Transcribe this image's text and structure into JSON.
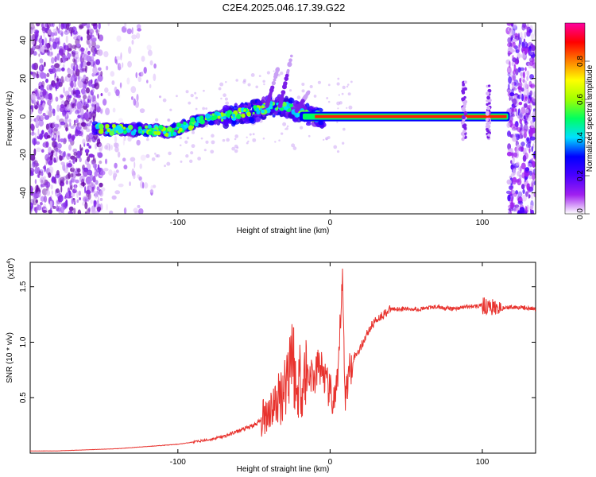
{
  "title": "C2E4.2025.046.17.39.G22",
  "colors": {
    "snr_line": "#e8332e",
    "axes": "#000000",
    "cmap": [
      "#ffffff",
      "#a020f0",
      "#4b00ff",
      "#0000ff",
      "#00e0ff",
      "#00ff60",
      "#a0ff00",
      "#ffff00",
      "#ff8000",
      "#ff0000",
      "#ff00a0"
    ]
  },
  "chart_data": [
    {
      "type": "heatmap",
      "xlabel": "Height of straight line (km)",
      "ylabel": "Frequency (Hz)",
      "xlim": [
        -197,
        135
      ],
      "ylim": [
        -51,
        49
      ],
      "x_ticks": [
        -100,
        0,
        100
      ],
      "y_ticks": [
        -40,
        -20,
        0,
        20,
        40
      ],
      "colorbar": {
        "label": "Normalized spectral amplitude",
        "range": [
          0,
          1
        ],
        "ticks": [
          0.0,
          0.2,
          0.4,
          0.6,
          0.8
        ]
      },
      "ridge": [
        {
          "x": -155,
          "y": -6
        },
        {
          "x": -140,
          "y": -7
        },
        {
          "x": -120,
          "y": -7
        },
        {
          "x": -105,
          "y": -8
        },
        {
          "x": -95,
          "y": -5
        },
        {
          "x": -85,
          "y": -2
        },
        {
          "x": -70,
          "y": 0
        },
        {
          "x": -55,
          "y": 2
        },
        {
          "x": -40,
          "y": 5
        },
        {
          "x": -30,
          "y": 6
        },
        {
          "x": -20,
          "y": 2
        },
        {
          "x": -10,
          "y": 0
        },
        {
          "x": 0,
          "y": 0
        },
        {
          "x": 50,
          "y": 0
        },
        {
          "x": 100,
          "y": 0
        },
        {
          "x": 118,
          "y": 0
        }
      ]
    },
    {
      "type": "line",
      "xlabel": "Height of straight line (km)",
      "ylabel": "SNR (10 * v/v)",
      "y_multiplier": "(x10",
      "y_multiplier_exp": "4",
      "xlim": [
        -197,
        135
      ],
      "ylim": [
        0,
        1.72
      ],
      "x_ticks": [
        -100,
        0,
        100
      ],
      "y_ticks": [
        0.5,
        1.0,
        1.5
      ],
      "series": [
        {
          "x": [
            -197,
            -180,
            -160,
            -140,
            -120,
            -100,
            -90,
            -80,
            -70,
            -60,
            -50,
            -45,
            -40,
            -35,
            -30,
            -27,
            -25,
            -22,
            -20,
            -18,
            -16,
            -14,
            -12,
            -10,
            -8,
            -5,
            -2,
            0,
            2,
            5,
            8,
            10,
            12,
            15,
            20,
            25,
            30,
            40,
            50,
            60,
            70,
            80,
            90,
            100,
            110,
            120,
            135
          ],
          "y": [
            0.02,
            0.02,
            0.03,
            0.04,
            0.06,
            0.08,
            0.1,
            0.12,
            0.15,
            0.2,
            0.25,
            0.3,
            0.4,
            0.45,
            0.6,
            0.8,
            1.0,
            0.5,
            0.7,
            0.6,
            0.75,
            0.7,
            0.72,
            0.65,
            0.8,
            0.75,
            0.6,
            0.55,
            0.45,
            0.6,
            1.6,
            0.5,
            0.7,
            0.85,
            0.95,
            1.1,
            1.2,
            1.3,
            1.3,
            1.3,
            1.32,
            1.3,
            1.32,
            1.33,
            1.3,
            1.32,
            1.3
          ]
        }
      ]
    }
  ]
}
